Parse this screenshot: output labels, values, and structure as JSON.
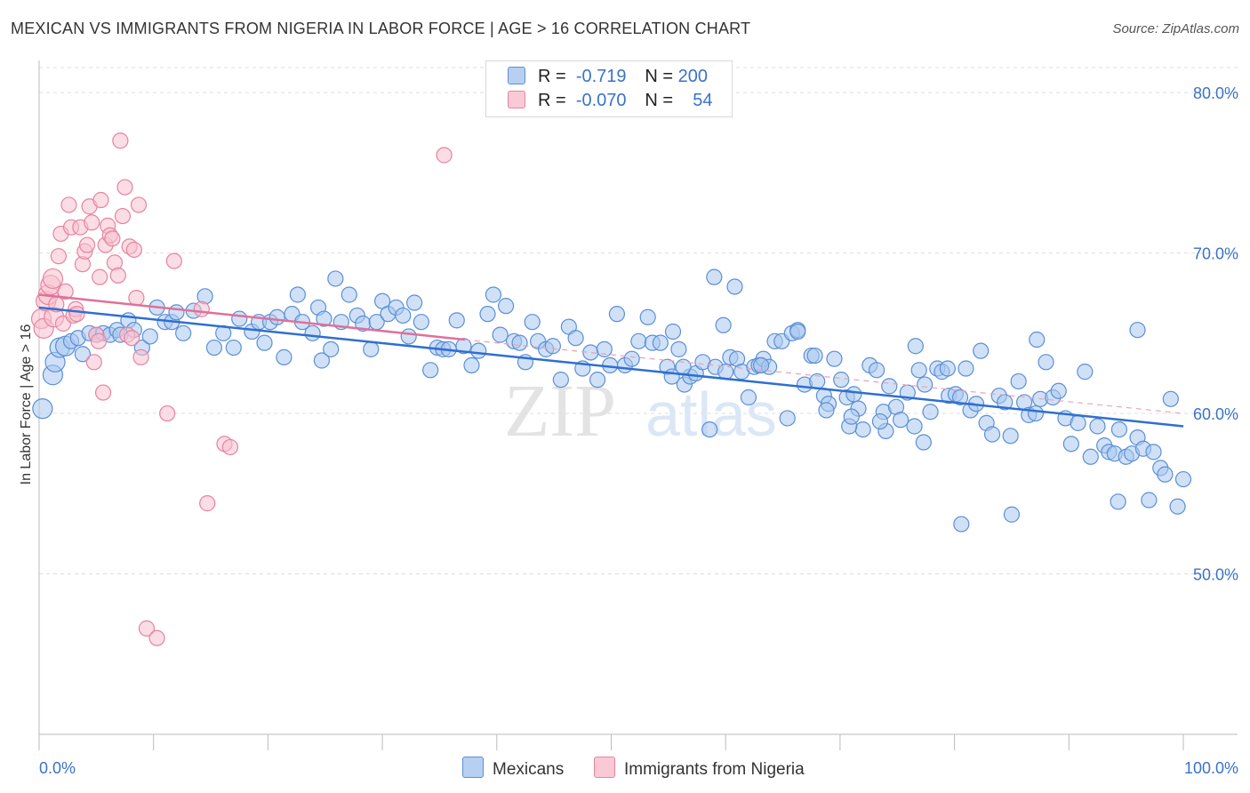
{
  "header": {
    "title": "MEXICAN VS IMMIGRANTS FROM NIGERIA IN LABOR FORCE | AGE > 16 CORRELATION CHART",
    "source": "Source: ZipAtlas.com"
  },
  "legend": {
    "rows": [
      {
        "r_label": "R =",
        "r_value": "-0.719",
        "n_label": "N =",
        "n_value": "200"
      },
      {
        "r_label": "R =",
        "r_value": "-0.070",
        "n_label": "N =",
        "n_value": "54"
      }
    ]
  },
  "watermark": {
    "zip": "ZIP",
    "atlas": "atlas"
  },
  "colors": {
    "mexicans_fill": "#a9c8f0",
    "mexicans_stroke": "#5b8fd6",
    "mexicans_line": "#2f6fd0",
    "nigeria_fill": "#f7c1d0",
    "nigeria_stroke": "#e6839f",
    "nigeria_line": "#e0709a",
    "axis_label": "#3a72c9",
    "grid": "#dddddd"
  },
  "chart_data": {
    "type": "scatter",
    "title": "MEXICAN VS IMMIGRANTS FROM NIGERIA IN LABOR FORCE | AGE > 16 CORRELATION CHART",
    "xlabel": "",
    "ylabel": "In Labor Force | Age > 16",
    "xlim": [
      0,
      100
    ],
    "ylim": [
      40,
      82
    ],
    "x_tick_labels": [
      "0.0%",
      "100.0%"
    ],
    "y_ticks": [
      50,
      60,
      70,
      80
    ],
    "y_tick_labels": [
      "50.0%",
      "60.0%",
      "70.0%",
      "80.0%"
    ],
    "grid": true,
    "legend_position": "top-center",
    "series": [
      {
        "name": "Mexicans",
        "r": -0.719,
        "n": 200,
        "trend": {
          "x": [
            0,
            100
          ],
          "y": [
            66.6,
            59.2
          ],
          "style": "solid"
        },
        "points": [
          [
            0.3,
            60.3
          ],
          [
            1.2,
            62.4
          ],
          [
            1.4,
            63.2
          ],
          [
            1.8,
            64.1
          ],
          [
            2.3,
            64.2
          ],
          [
            2.8,
            64.5
          ],
          [
            3.4,
            64.7
          ],
          [
            3.8,
            63.7
          ],
          [
            4.4,
            65.0
          ],
          [
            5.0,
            64.9
          ],
          [
            5.6,
            65.0
          ],
          [
            6.2,
            64.9
          ],
          [
            6.8,
            65.2
          ],
          [
            7.1,
            64.9
          ],
          [
            7.8,
            65.8
          ],
          [
            8.3,
            65.2
          ],
          [
            9.0,
            64.1
          ],
          [
            9.7,
            64.8
          ],
          [
            10.3,
            66.6
          ],
          [
            11.0,
            65.7
          ],
          [
            11.6,
            65.7
          ],
          [
            12.0,
            66.3
          ],
          [
            12.6,
            65.0
          ],
          [
            13.5,
            66.4
          ],
          [
            14.5,
            67.3
          ],
          [
            15.3,
            64.1
          ],
          [
            16.1,
            65.0
          ],
          [
            17.0,
            64.1
          ],
          [
            17.5,
            65.9
          ],
          [
            18.6,
            65.1
          ],
          [
            19.2,
            65.7
          ],
          [
            19.7,
            64.4
          ],
          [
            20.2,
            65.7
          ],
          [
            20.8,
            66.0
          ],
          [
            21.4,
            63.5
          ],
          [
            22.1,
            66.2
          ],
          [
            22.6,
            67.4
          ],
          [
            23.0,
            65.7
          ],
          [
            23.9,
            65.0
          ],
          [
            24.4,
            66.6
          ],
          [
            24.7,
            63.3
          ],
          [
            24.9,
            65.9
          ],
          [
            25.5,
            64.0
          ],
          [
            25.9,
            68.4
          ],
          [
            26.4,
            65.7
          ],
          [
            27.1,
            67.4
          ],
          [
            27.8,
            66.1
          ],
          [
            28.3,
            65.6
          ],
          [
            29.0,
            64.0
          ],
          [
            29.5,
            65.7
          ],
          [
            30.0,
            67.0
          ],
          [
            30.5,
            66.2
          ],
          [
            31.2,
            66.6
          ],
          [
            31.8,
            66.1
          ],
          [
            32.3,
            64.8
          ],
          [
            32.8,
            66.9
          ],
          [
            33.4,
            65.7
          ],
          [
            34.2,
            62.7
          ],
          [
            34.8,
            64.1
          ],
          [
            35.3,
            64.0
          ],
          [
            35.8,
            64.0
          ],
          [
            36.5,
            65.8
          ],
          [
            37.1,
            64.2
          ],
          [
            37.8,
            63.0
          ],
          [
            38.4,
            63.9
          ],
          [
            39.2,
            66.2
          ],
          [
            39.7,
            67.4
          ],
          [
            40.3,
            64.9
          ],
          [
            40.8,
            66.7
          ],
          [
            41.5,
            64.5
          ],
          [
            42.0,
            64.4
          ],
          [
            42.5,
            63.2
          ],
          [
            43.1,
            65.7
          ],
          [
            43.6,
            64.5
          ],
          [
            44.3,
            64.0
          ],
          [
            44.9,
            64.2
          ],
          [
            45.6,
            62.1
          ],
          [
            46.3,
            65.4
          ],
          [
            46.9,
            64.7
          ],
          [
            47.5,
            62.8
          ],
          [
            48.2,
            63.8
          ],
          [
            48.8,
            62.1
          ],
          [
            49.4,
            64.0
          ],
          [
            49.9,
            63.0
          ],
          [
            50.5,
            66.2
          ],
          [
            51.2,
            63.0
          ],
          [
            51.8,
            63.4
          ],
          [
            52.4,
            64.5
          ],
          [
            53.2,
            66.0
          ],
          [
            53.6,
            64.4
          ],
          [
            54.3,
            64.4
          ],
          [
            54.9,
            62.9
          ],
          [
            55.4,
            65.1
          ],
          [
            55.9,
            64.0
          ],
          [
            56.4,
            61.8
          ],
          [
            56.9,
            62.3
          ],
          [
            57.4,
            62.5
          ],
          [
            58.0,
            63.2
          ],
          [
            58.6,
            59.0
          ],
          [
            59.1,
            62.9
          ],
          [
            59.8,
            65.5
          ],
          [
            60.4,
            63.5
          ],
          [
            61.0,
            63.4
          ],
          [
            61.4,
            62.6
          ],
          [
            62.0,
            61.0
          ],
          [
            62.5,
            62.9
          ],
          [
            62.9,
            63.0
          ],
          [
            63.3,
            63.4
          ],
          [
            63.8,
            62.9
          ],
          [
            64.3,
            64.5
          ],
          [
            64.9,
            64.5
          ],
          [
            65.4,
            59.7
          ],
          [
            65.8,
            65.0
          ],
          [
            66.3,
            65.2
          ],
          [
            66.9,
            61.8
          ],
          [
            67.5,
            63.6
          ],
          [
            68.0,
            62.0
          ],
          [
            68.6,
            61.1
          ],
          [
            69.0,
            60.6
          ],
          [
            69.5,
            63.4
          ],
          [
            70.1,
            62.1
          ],
          [
            70.6,
            61.0
          ],
          [
            71.2,
            61.2
          ],
          [
            71.6,
            60.3
          ],
          [
            72.0,
            59.0
          ],
          [
            72.6,
            63.0
          ],
          [
            73.2,
            62.7
          ],
          [
            73.8,
            60.1
          ],
          [
            74.3,
            61.7
          ],
          [
            74.9,
            60.4
          ],
          [
            75.3,
            59.6
          ],
          [
            75.9,
            61.3
          ],
          [
            76.5,
            59.2
          ],
          [
            76.9,
            62.7
          ],
          [
            77.4,
            61.8
          ],
          [
            77.9,
            60.1
          ],
          [
            78.5,
            62.8
          ],
          [
            78.9,
            62.6
          ],
          [
            79.5,
            61.1
          ],
          [
            80.1,
            61.2
          ],
          [
            80.5,
            61.0
          ],
          [
            81.0,
            62.8
          ],
          [
            81.4,
            60.2
          ],
          [
            81.9,
            60.6
          ],
          [
            82.3,
            63.9
          ],
          [
            82.8,
            59.4
          ],
          [
            83.3,
            58.7
          ],
          [
            83.9,
            61.1
          ],
          [
            84.4,
            60.7
          ],
          [
            84.9,
            58.6
          ],
          [
            85.6,
            62.0
          ],
          [
            86.1,
            60.7
          ],
          [
            86.5,
            59.9
          ],
          [
            87.1,
            60.0
          ],
          [
            87.5,
            60.9
          ],
          [
            88.0,
            63.2
          ],
          [
            88.6,
            61.0
          ],
          [
            89.1,
            61.4
          ],
          [
            89.7,
            59.7
          ],
          [
            90.2,
            58.1
          ],
          [
            90.8,
            59.4
          ],
          [
            91.4,
            62.6
          ],
          [
            91.9,
            57.3
          ],
          [
            92.5,
            59.2
          ],
          [
            93.1,
            58.0
          ],
          [
            93.5,
            57.6
          ],
          [
            94.0,
            57.5
          ],
          [
            94.4,
            59.0
          ],
          [
            95.0,
            57.3
          ],
          [
            95.5,
            57.5
          ],
          [
            96.0,
            58.5
          ],
          [
            96.5,
            57.8
          ],
          [
            97.0,
            54.6
          ],
          [
            97.4,
            57.6
          ],
          [
            98.0,
            56.6
          ],
          [
            98.4,
            56.2
          ],
          [
            98.9,
            60.9
          ],
          [
            99.5,
            54.2
          ],
          [
            100.0,
            55.9
          ],
          [
            76.6,
            64.2
          ],
          [
            60.8,
            67.9
          ],
          [
            59.0,
            68.5
          ],
          [
            70.8,
            59.2
          ],
          [
            66.3,
            65.1
          ],
          [
            67.8,
            63.6
          ],
          [
            63.1,
            63.0
          ],
          [
            56.3,
            62.9
          ],
          [
            87.2,
            64.6
          ],
          [
            96.0,
            65.2
          ],
          [
            55.3,
            62.3
          ],
          [
            85.0,
            53.7
          ],
          [
            80.6,
            53.1
          ],
          [
            94.3,
            54.5
          ],
          [
            79.4,
            62.8
          ],
          [
            74.0,
            58.9
          ],
          [
            77.3,
            58.2
          ],
          [
            73.5,
            59.5
          ],
          [
            71.0,
            59.8
          ],
          [
            68.8,
            60.2
          ],
          [
            60.0,
            62.6
          ]
        ]
      },
      {
        "name": "Immigrants from Nigeria",
        "r": -0.07,
        "n": 54,
        "trend": {
          "x": [
            0,
            37.2
          ],
          "y": [
            67.4,
            64.6
          ],
          "style": "solid",
          "extended_dashed_to": [
            100,
            60.0
          ]
        },
        "points": [
          [
            0.2,
            65.9
          ],
          [
            0.4,
            65.3
          ],
          [
            0.6,
            67.0
          ],
          [
            0.8,
            67.4
          ],
          [
            1.0,
            68.0
          ],
          [
            1.2,
            68.4
          ],
          [
            1.3,
            66.0
          ],
          [
            1.5,
            66.8
          ],
          [
            1.7,
            69.8
          ],
          [
            1.9,
            71.2
          ],
          [
            2.1,
            65.6
          ],
          [
            2.3,
            67.6
          ],
          [
            2.6,
            73.0
          ],
          [
            2.8,
            71.6
          ],
          [
            3.0,
            66.1
          ],
          [
            3.2,
            66.5
          ],
          [
            3.3,
            66.2
          ],
          [
            3.6,
            71.6
          ],
          [
            3.8,
            69.3
          ],
          [
            4.0,
            70.1
          ],
          [
            4.2,
            70.5
          ],
          [
            4.4,
            72.9
          ],
          [
            4.6,
            71.9
          ],
          [
            4.8,
            63.2
          ],
          [
            5.0,
            64.9
          ],
          [
            5.2,
            64.5
          ],
          [
            5.4,
            73.3
          ],
          [
            5.6,
            61.3
          ],
          [
            5.8,
            70.5
          ],
          [
            6.0,
            71.7
          ],
          [
            6.2,
            71.1
          ],
          [
            6.4,
            70.9
          ],
          [
            6.6,
            69.4
          ],
          [
            6.9,
            68.6
          ],
          [
            7.1,
            77.0
          ],
          [
            7.3,
            72.3
          ],
          [
            7.5,
            74.1
          ],
          [
            7.7,
            64.9
          ],
          [
            7.9,
            70.4
          ],
          [
            8.1,
            64.7
          ],
          [
            8.3,
            70.2
          ],
          [
            8.5,
            67.2
          ],
          [
            8.7,
            73.0
          ],
          [
            8.9,
            63.5
          ],
          [
            9.4,
            46.6
          ],
          [
            10.3,
            46.0
          ],
          [
            11.2,
            60.0
          ],
          [
            11.8,
            69.5
          ],
          [
            14.2,
            66.5
          ],
          [
            14.7,
            54.4
          ],
          [
            16.2,
            58.1
          ],
          [
            16.7,
            57.9
          ],
          [
            35.4,
            76.1
          ],
          [
            5.3,
            68.5
          ]
        ]
      }
    ]
  },
  "bottom_legend": {
    "items": [
      "Mexicans",
      "Immigrants from Nigeria"
    ]
  }
}
